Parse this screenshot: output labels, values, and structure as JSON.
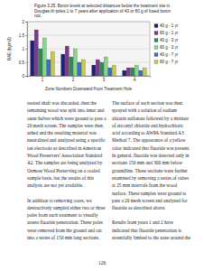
{
  "caption": "Figure 3.25. Boron levels at selected distances below the treatment site in Douglas-fir poles 1 to 7 years after application of 40 or 80 g of fused boron rod.",
  "chart_data": {
    "type": "bar",
    "x_label": "Zone Numbers Downward From Treatment Hole",
    "y_label": "BAE (kg/m3)",
    "categories": [
      "1",
      "2",
      "3",
      "4"
    ],
    "series": [
      {
        "name": "40 g - 1 yr",
        "color": "#1f1f7a",
        "values": [
          1.3,
          0.8,
          0.4,
          0.2
        ]
      },
      {
        "name": "80 g - 1 yr",
        "color": "#7a3b8f",
        "values": [
          1.7,
          1.1,
          0.6,
          0.3
        ]
      },
      {
        "name": "40 g - 3 yr",
        "color": "#2e8b57",
        "values": [
          1.0,
          0.7,
          0.5,
          0.3
        ]
      },
      {
        "name": "80 g - 3 yr",
        "color": "#8fd18f",
        "values": [
          1.4,
          1.0,
          0.7,
          0.4
        ]
      },
      {
        "name": "40 g - 7 yr",
        "color": "#3a6fc4",
        "values": [
          0.6,
          0.5,
          0.3,
          0.2
        ]
      },
      {
        "name": "80 g - 7 yr",
        "color": "#c8c84a",
        "values": [
          0.9,
          0.6,
          0.4,
          0.3
        ]
      }
    ],
    "ylim": [
      0,
      2
    ],
    "yticks": [
      0,
      0.5,
      1,
      1.5,
      2
    ],
    "grid": true,
    "legend": "right"
  },
  "columns": [
    [
      "treated shaft was discarded, then the remaining wood was split into inner and outer halves which were ground to pass a 20 mesh screen. The samples were then ashed and the resulting material was neutralized and analyzed using a specific ion electrode as described in American Wood Preservers' Association Standard A2. The samples are being analyzed by Osmose Wood Preserving on a cooled sample basis, but the results of this analysis are not yet available.",
      "In addition to removing cores, we destructively sampled either two or three poles from each treatment to visually assess fluoride penetration. These poles were removed from the ground and cut into a series of 150 mm long sections."
    ],
    [
      "The surface of each section was then sprayed with a solution of sodium alizarin sulfonate followed by a mixture of zirconyl chloride and hydrochloric acid according to AWPA Standard A3 Method 7. The appearance of a yellow color indicated that fluoride was present. In general, fluoride was detected only in sections 150 mm and 300 mm below groundline. These sections were further examined by removing a series of cubes at 25 mm intervals from the wood surface. These samples were ground to pass a 20 mesh screen and analyzed for fluoride as described above.",
      "Results from years 1 and 2 have indicated that fluoride penetration is essentially limited to the zone around the"
    ]
  ],
  "page_number": "126"
}
